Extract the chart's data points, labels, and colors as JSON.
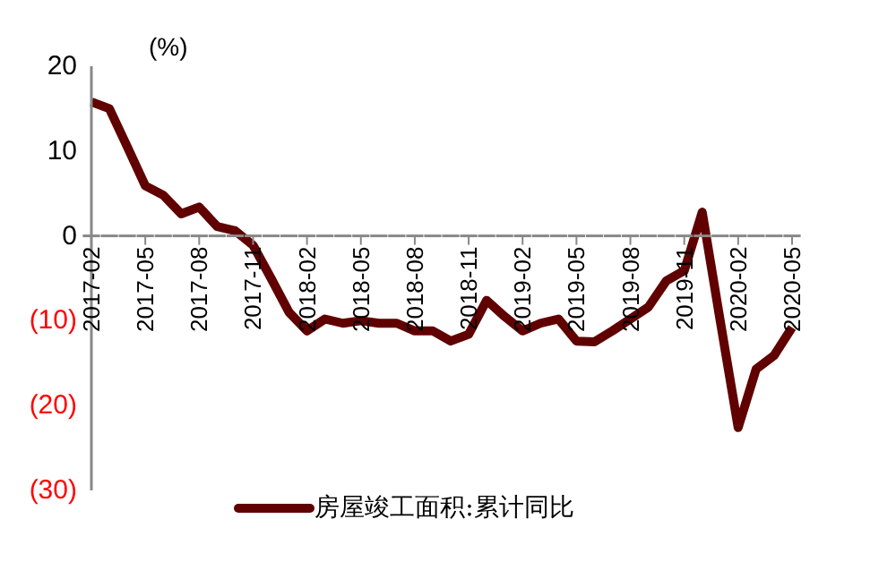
{
  "chart_data": {
    "type": "line",
    "categories": [
      "2017-02",
      null,
      null,
      "2017-05",
      null,
      null,
      "2017-08",
      null,
      null,
      "2017-11",
      null,
      null,
      "2018-02",
      null,
      null,
      "2018-05",
      null,
      null,
      "2018-08",
      null,
      null,
      "2018-11",
      null,
      null,
      "2019-02",
      null,
      null,
      "2019-05",
      null,
      null,
      "2019-08",
      null,
      null,
      "2019-11",
      null,
      null,
      "2020-02",
      null,
      null,
      "2020-05"
    ],
    "series": [
      {
        "name": "房屋竣工面积:累计同比",
        "color": "#600000",
        "values": [
          15.8,
          15.0,
          10.5,
          5.9,
          4.8,
          2.6,
          3.4,
          1.1,
          0.6,
          -1.1,
          -5,
          -9,
          -11.2,
          -9.8,
          -10.3,
          -10.0,
          -10.3,
          -10.3,
          -11.2,
          -11.2,
          -12.4,
          -11.6,
          -7.6,
          -9.5,
          -11.2,
          -10.3,
          -9.8,
          -12.4,
          -12.5,
          -11.2,
          -9.8,
          -8.4,
          -5.3,
          -4.1,
          2.8,
          -10,
          -22.6,
          -15.7,
          -14.1,
          -10.8
        ]
      }
    ],
    "ylim": [
      -30,
      20
    ],
    "yticks": [
      20,
      10,
      0,
      {
        "value": -10,
        "label": "(10)"
      },
      {
        "value": -20,
        "label": "(20)"
      },
      {
        "value": -30,
        "label": "(30)"
      }
    ],
    "annotations": [
      "(%)"
    ],
    "grid": false,
    "legend": "bottom",
    "marker": "none",
    "line_style": "solid"
  }
}
